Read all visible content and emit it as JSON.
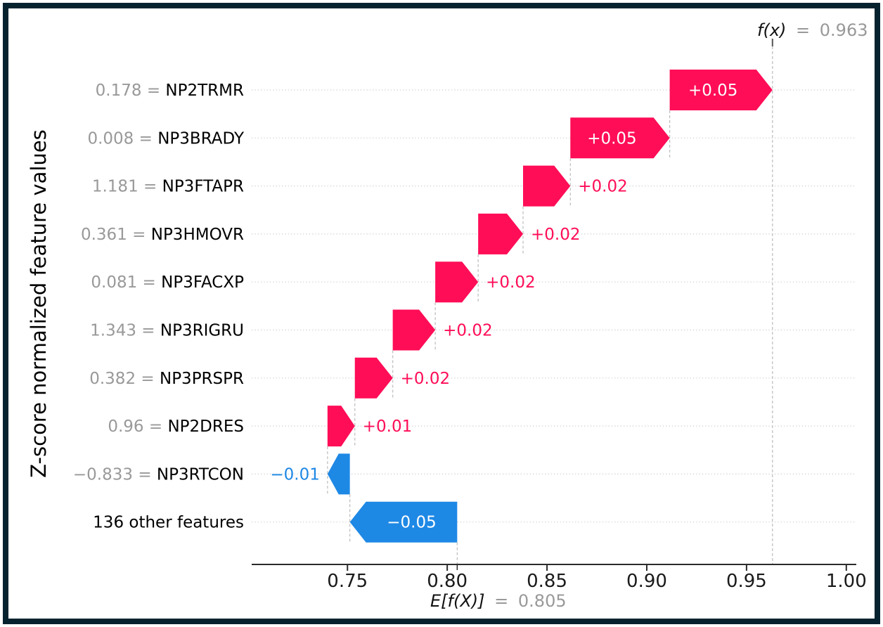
{
  "chart_data": {
    "type": "waterfall",
    "title_fx": {
      "math": "f(x)",
      "equals": "=",
      "value": "0.963",
      "x": 0.963
    },
    "baseline_ex": {
      "math": "E[f(X)]",
      "equals": "=",
      "value": "0.805",
      "x": 0.805
    },
    "ylabel": "Z-score normalized feature values",
    "xlim": [
      0.702,
      1.005
    ],
    "xticks": [
      {
        "v": 0.75,
        "label": "0.75"
      },
      {
        "v": 0.8,
        "label": "0.80"
      },
      {
        "v": 0.85,
        "label": "0.85"
      },
      {
        "v": 0.9,
        "label": "0.90"
      },
      {
        "v": 0.95,
        "label": "0.95"
      },
      {
        "v": 1.0,
        "label": "1.00"
      }
    ],
    "colors": {
      "positive": "#ff0d57",
      "negative": "#1e88e5",
      "value_gray": "#999999",
      "name_black": "#000000",
      "grid": "#d4d4d4",
      "connector": "#bcbcbc",
      "axis": "#2b2b2b",
      "frame_border": "#07222f",
      "inside_label": "#ffffff"
    },
    "rows": [
      {
        "feature_value": "0.178",
        "feature": "NP2TRMR",
        "contribution": "+0.05",
        "start": 0.9115,
        "end": 0.963
      },
      {
        "feature_value": "0.008",
        "feature": "NP3BRADY",
        "contribution": "+0.05",
        "start": 0.8617,
        "end": 0.9115
      },
      {
        "feature_value": "1.181",
        "feature": "NP3FTAPR",
        "contribution": "+0.02",
        "start": 0.838,
        "end": 0.8617
      },
      {
        "feature_value": "0.361",
        "feature": "NP3HMOVR",
        "contribution": "+0.02",
        "start": 0.8155,
        "end": 0.838
      },
      {
        "feature_value": "0.081",
        "feature": "NP3FACXP",
        "contribution": "+0.02",
        "start": 0.794,
        "end": 0.8155
      },
      {
        "feature_value": "1.343",
        "feature": "NP3RIGRU",
        "contribution": "+0.02",
        "start": 0.7727,
        "end": 0.794
      },
      {
        "feature_value": "0.382",
        "feature": "NP3PRSPR",
        "contribution": "+0.02",
        "start": 0.7537,
        "end": 0.7727
      },
      {
        "feature_value": "0.96",
        "feature": "NP2DRES",
        "contribution": "+0.01",
        "start": 0.74,
        "end": 0.7537
      },
      {
        "feature_value": "−0.833",
        "feature": "NP3RTCON",
        "contribution": "−0.01",
        "start": 0.7512,
        "end": 0.74
      },
      {
        "feature_value": null,
        "feature": "136 other features",
        "contribution": "−0.05",
        "start": 0.805,
        "end": 0.7512
      }
    ]
  }
}
